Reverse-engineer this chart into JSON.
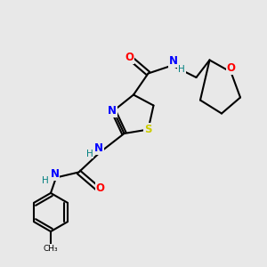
{
  "bg_color": "#e8e8e8",
  "atom_colors": {
    "N": "#0000ff",
    "S": "#cccc00",
    "O": "#ff0000",
    "C": "#000000",
    "H": "#008080"
  },
  "bond_color": "#000000",
  "bond_width": 1.5
}
